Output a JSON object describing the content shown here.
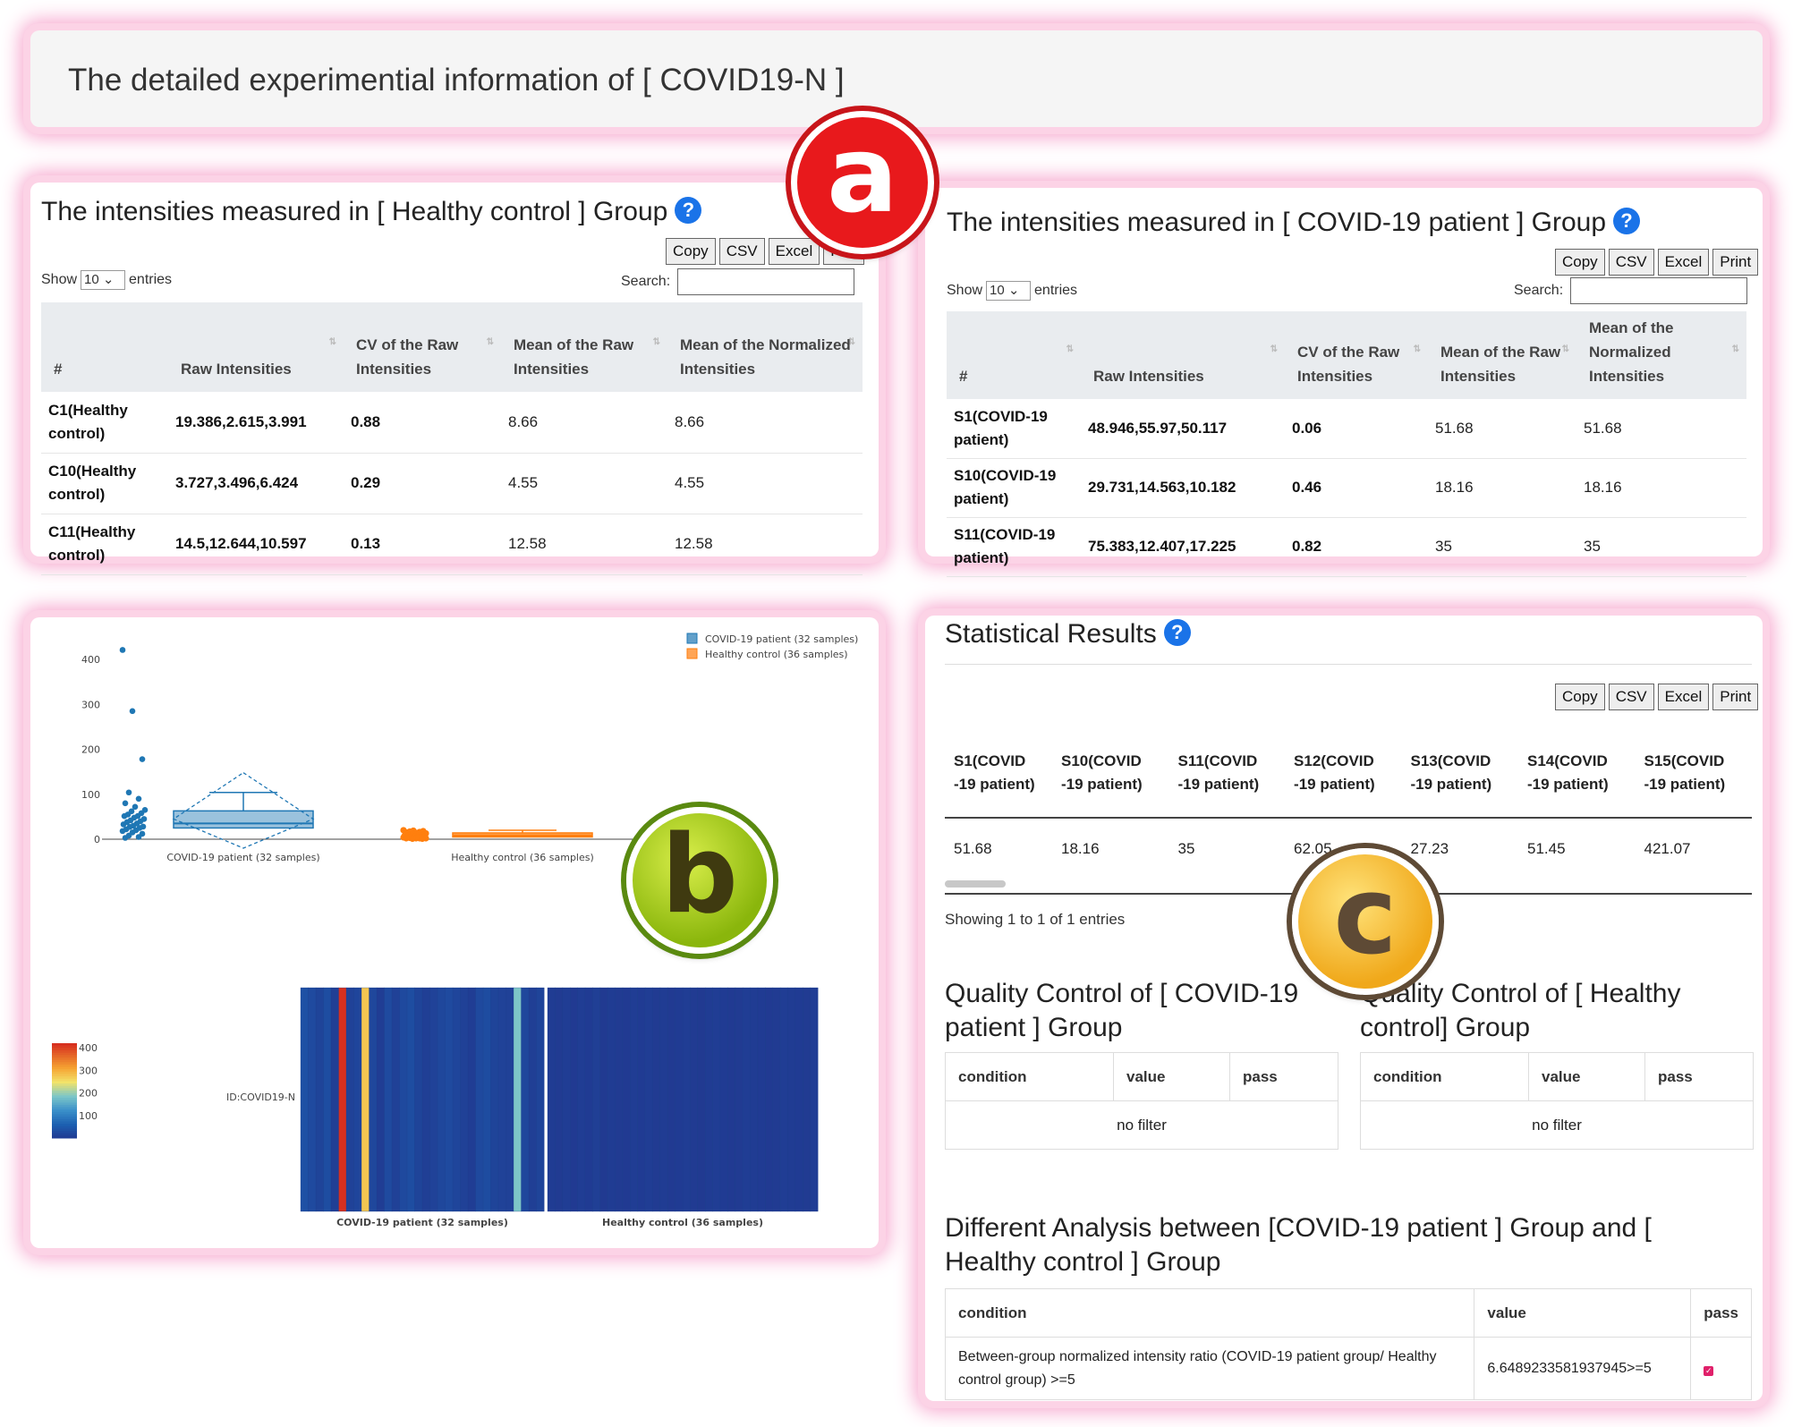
{
  "page": {
    "header_title": "The detailed experimential information of [ COVID19-N ]"
  },
  "badges": {
    "a": "a",
    "b": "b",
    "c": "c"
  },
  "buttons": {
    "copy": "Copy",
    "csv": "CSV",
    "excel": "Excel",
    "print": "Print",
    "print_partial": "Prin"
  },
  "length_menu": {
    "show": "Show",
    "value": "10",
    "entries": "entries"
  },
  "search_label": "Search:",
  "help_glyph": "?",
  "columns": [
    "#",
    "Raw Intensities",
    "CV of the Raw Intensities",
    "Mean of the Raw Intensities",
    "Mean of the Normalized Intensities"
  ],
  "healthy_table": {
    "title": "The intensities measured in [ Healthy control ] Group",
    "rows": [
      {
        "id": "C1(Healthy control)",
        "raw": "19.386,2.615,3.991",
        "cv": "0.88",
        "mean_raw": "8.66",
        "mean_norm": "8.66"
      },
      {
        "id": "C10(Healthy control)",
        "raw": "3.727,3.496,6.424",
        "cv": "0.29",
        "mean_raw": "4.55",
        "mean_norm": "4.55"
      },
      {
        "id": "C11(Healthy control)",
        "raw": "14.5,12.644,10.597",
        "cv": "0.13",
        "mean_raw": "12.58",
        "mean_norm": "12.58"
      }
    ]
  },
  "covid_table": {
    "title": "The intensities measured in [ COVID-19 patient ] Group",
    "rows": [
      {
        "id": "S1(COVID-19 patient)",
        "raw": "48.946,55.97,50.117",
        "cv": "0.06",
        "mean_raw": "51.68",
        "mean_norm": "51.68"
      },
      {
        "id": "S10(COVID-19 patient)",
        "raw": "29.731,14.563,10.182",
        "cv": "0.46",
        "mean_raw": "18.16",
        "mean_norm": "18.16"
      },
      {
        "id": "S11(COVID-19 patient)",
        "raw": "75.383,12.407,17.225",
        "cv": "0.82",
        "mean_raw": "35",
        "mean_norm": "35"
      }
    ]
  },
  "chart_data": [
    {
      "type": "box",
      "categories": [
        "COVID-19 patient (32 samples)",
        "Healthy control (36 samples)"
      ],
      "legend": [
        "COVID-19 patient (32 samples)",
        "Healthy control (36 samples)"
      ],
      "legend_position": "top-right",
      "colors": [
        "#1f77b4",
        "#ff7f0e"
      ],
      "ylim": [
        0,
        430
      ],
      "yticks": [
        0,
        100,
        200,
        300,
        400
      ],
      "series": [
        {
          "name": "COVID-19 patient (32 samples)",
          "q1": 25,
          "median": 35,
          "q3": 63,
          "whisker_low": 0,
          "whisker_high": 104,
          "mean": 45,
          "sd_high": 148,
          "points": [
            421.07,
            285,
            178,
            104,
            90,
            80,
            72,
            65,
            62.05,
            58,
            55,
            51.68,
            51.45,
            48,
            45,
            42,
            40,
            38,
            35,
            33,
            30,
            28,
            27.23,
            25,
            22,
            20,
            18.16,
            15,
            12,
            8,
            5,
            3
          ]
        },
        {
          "name": "Healthy control (36 samples)",
          "q1": 5,
          "median": 8,
          "q3": 14,
          "whisker_low": 2,
          "whisker_high": 20,
          "mean": 9,
          "points": [
            20,
            19,
            18,
            17,
            16,
            15,
            14,
            13,
            12.58,
            12,
            11,
            10,
            10,
            9,
            9,
            8.66,
            8,
            8,
            7,
            7,
            6,
            6,
            5,
            5,
            4.55,
            4,
            4,
            3,
            3,
            3,
            2,
            2,
            2,
            2,
            1,
            1
          ]
        }
      ]
    },
    {
      "type": "heatmap",
      "ytick": "ID:COVID19-N",
      "xlabels": [
        "COVID-19 patient (32 samples)",
        "Healthy control (36 samples)"
      ],
      "colorbar_ticks": [
        100,
        200,
        300,
        400
      ],
      "zlim": [
        0,
        420
      ],
      "values_covid": [
        40,
        30,
        20,
        35,
        12,
        421.07,
        18,
        22,
        280,
        25,
        10,
        30,
        15,
        28,
        35,
        20,
        12,
        18,
        25,
        30,
        22,
        15,
        10,
        28,
        33,
        20,
        18,
        15,
        190,
        25,
        12,
        20
      ],
      "values_healthy": [
        8,
        6,
        10,
        5,
        9,
        7,
        12,
        4,
        8,
        6,
        5,
        9,
        7,
        10,
        6,
        8,
        5,
        7,
        9,
        6,
        4,
        8,
        10,
        7,
        5,
        6,
        9,
        8,
        7,
        5,
        6,
        10,
        8,
        7,
        6,
        9
      ]
    }
  ],
  "stats": {
    "title": "Statistical Results",
    "columns": [
      "S1(COVID -19 patient)",
      "S10(COVID -19 patient)",
      "S11(COVID -19 patient)",
      "S12(COVID -19 patient)",
      "S13(COVID -19 patient)",
      "S14(COVID -19 patient)",
      "S15(COVID -19 patient)"
    ],
    "values": [
      "51.68",
      "18.16",
      "35",
      "62.05",
      "27.23",
      "51.45",
      "421.07"
    ],
    "info": "Showing 1 to 1 of 1 entries"
  },
  "qc_covid": {
    "title": "Quality Control of [ COVID-19 patient ] Group",
    "cols": [
      "condition",
      "value",
      "pass"
    ],
    "empty": "no filter"
  },
  "qc_healthy": {
    "title": "Quality Control of [ Healthy control] Group",
    "cols": [
      "condition",
      "value",
      "pass"
    ],
    "empty": "no filter"
  },
  "diff": {
    "title": "Different Analysis between [COVID-19 patient ] Group and [ Healthy control ] Group",
    "cols": [
      "condition",
      "value",
      "pass"
    ],
    "row": {
      "condition": "Between-group normalized intensity ratio (COVID-19 patient group/ Healthy control group) >=5",
      "value": "6.6489233581937945>=5"
    }
  }
}
